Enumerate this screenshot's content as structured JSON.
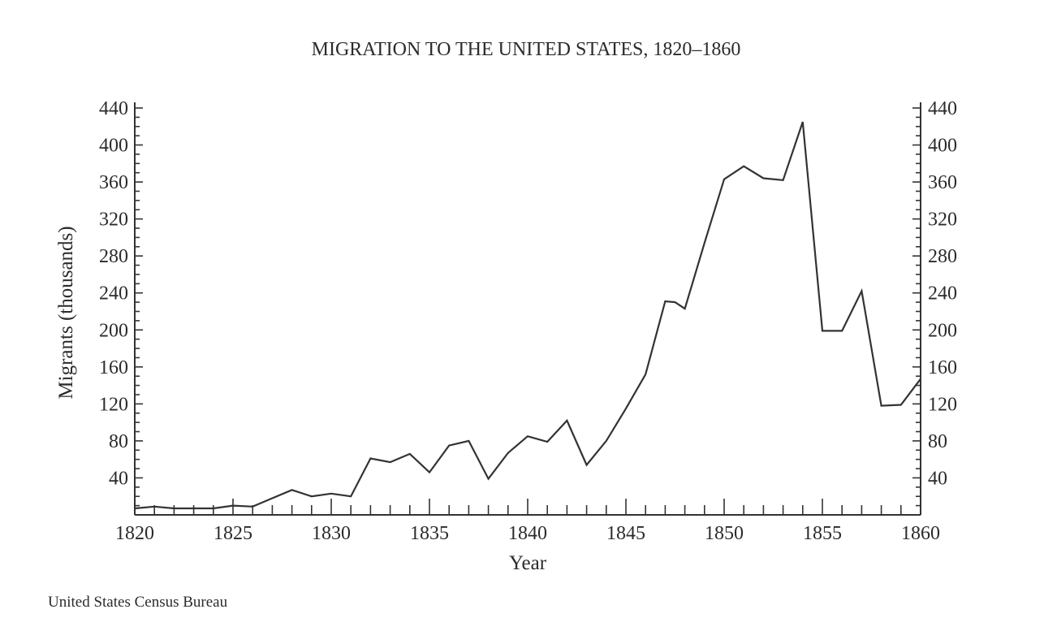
{
  "chart_data": {
    "type": "line",
    "title": "MIGRATION TO THE UNITED STATES, 1820–1860",
    "xlabel": "Year",
    "ylabel": "Migrants (thousands)",
    "xlim": [
      1820,
      1860
    ],
    "ylim": [
      0,
      440
    ],
    "x_ticks": [
      "1820",
      "1825",
      "1830",
      "1835",
      "1840",
      "1845",
      "1850",
      "1855",
      "1860"
    ],
    "y_ticks": [
      "40",
      "80",
      "120",
      "160",
      "200",
      "240",
      "280",
      "320",
      "360",
      "400",
      "440"
    ],
    "right_axis": true,
    "grid": false,
    "series": [
      {
        "x": [
          1820,
          1821,
          1822,
          1823,
          1824,
          1825,
          1826,
          1827,
          1828,
          1829,
          1830,
          1831,
          1832,
          1833,
          1834,
          1835,
          1836,
          1837,
          1838,
          1839,
          1840,
          1841,
          1842,
          1843,
          1844,
          1845,
          1846,
          1847,
          1847.5,
          1848,
          1849,
          1850,
          1851,
          1852,
          1853,
          1854,
          1855,
          1856,
          1857,
          1858,
          1859,
          1860
        ],
        "values": [
          7,
          9,
          7,
          7,
          7,
          10,
          9,
          18,
          27,
          20,
          23,
          20,
          61,
          57,
          66,
          46,
          75,
          80,
          39,
          67,
          85,
          79,
          102,
          54,
          80,
          115,
          152,
          231,
          230,
          223,
          294,
          363,
          377,
          364,
          362,
          425,
          199,
          199,
          242,
          118,
          119,
          147
        ]
      }
    ],
    "line_color": "#333333"
  },
  "source_note": "United States Census Bureau"
}
